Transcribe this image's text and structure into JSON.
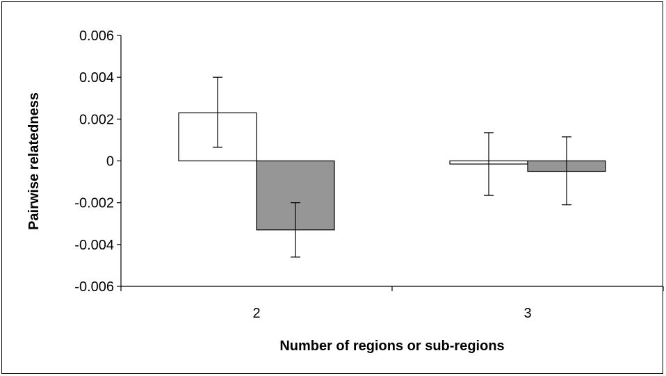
{
  "chart_data": {
    "type": "bar",
    "title": "",
    "xlabel": "Number of regions or sub-regions",
    "ylabel": "Pairwise relatedness",
    "categories": [
      "2",
      "3"
    ],
    "ylim": [
      -0.006,
      0.006
    ],
    "yticks": [
      "0.006",
      "0.004",
      "0.002",
      "0",
      "-0.002",
      "-0.004",
      "-0.006"
    ],
    "ytick_values": [
      0.006,
      0.004,
      0.002,
      0,
      -0.002,
      -0.004,
      -0.006
    ],
    "grid": false,
    "legend": "none",
    "series": [
      {
        "color": "#ffffff",
        "values": [
          0.0023,
          -0.00015
        ],
        "err_low": [
          0.00065,
          -0.00165
        ],
        "err_high": [
          0.004,
          0.00135
        ]
      },
      {
        "color": "#969696",
        "values": [
          -0.0033,
          -0.0005
        ],
        "err_low": [
          -0.0046,
          -0.0021
        ],
        "err_high": [
          -0.002,
          0.00115
        ]
      }
    ]
  }
}
